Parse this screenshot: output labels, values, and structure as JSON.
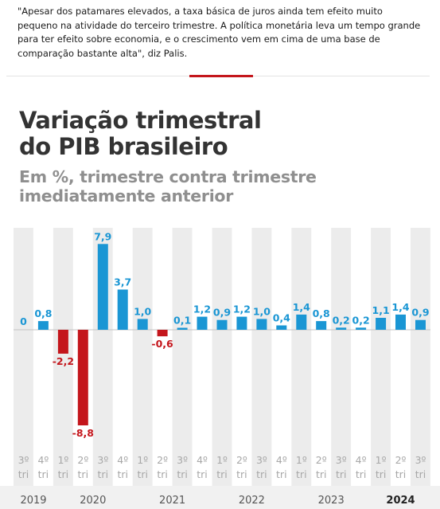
{
  "article": {
    "quote": "\"Apesar dos patamares elevados, a taxa básica de juros ainda tem efeito muito pequeno na atividade do terceiro trimestre. A política monetária leva um tempo grande para ter efeito sobre economia, e o crescimento vem em cima de uma base de comparação bastante alta\", diz Palis."
  },
  "colors": {
    "positive": "#1a96d4",
    "negative": "#c4161c",
    "positive_label": "#1a96d4",
    "negative_label": "#c4161c",
    "stripe": "#ececec",
    "axis": "#c4c4c4",
    "accent_line": "#c4161c"
  },
  "chart_data": {
    "type": "bar",
    "title_line1": "Variação trimestral",
    "title_line2": "do PIB brasileiro",
    "subtitle_line1": "Em %, trimestre contra trimestre",
    "subtitle_line2": "imediatamente anterior",
    "categories": [
      {
        "q": "3º",
        "t": "tri"
      },
      {
        "q": "4º",
        "t": "tri"
      },
      {
        "q": "1º",
        "t": "tri"
      },
      {
        "q": "2º",
        "t": "tri"
      },
      {
        "q": "3º",
        "t": "tri"
      },
      {
        "q": "4º",
        "t": "tri"
      },
      {
        "q": "1º",
        "t": "tri"
      },
      {
        "q": "2º",
        "t": "tri"
      },
      {
        "q": "3º",
        "t": "tri"
      },
      {
        "q": "4º",
        "t": "tri"
      },
      {
        "q": "1º",
        "t": "tri"
      },
      {
        "q": "2º",
        "t": "tri"
      },
      {
        "q": "3º",
        "t": "tri"
      },
      {
        "q": "4º",
        "t": "tri"
      },
      {
        "q": "1º",
        "t": "tri"
      },
      {
        "q": "2º",
        "t": "tri"
      },
      {
        "q": "3º",
        "t": "tri"
      },
      {
        "q": "4º",
        "t": "tri"
      },
      {
        "q": "1º",
        "t": "tri"
      },
      {
        "q": "2º",
        "t": "tri"
      },
      {
        "q": "3º",
        "t": "tri"
      }
    ],
    "values": [
      0,
      0.8,
      -2.2,
      -8.8,
      7.9,
      3.7,
      1.0,
      -0.6,
      0.1,
      1.2,
      0.9,
      1.2,
      1.0,
      0.4,
      1.4,
      0.8,
      0.2,
      0.2,
      1.1,
      1.4,
      0.9
    ],
    "labels": [
      "0",
      "0,8",
      "-2,2",
      "-8,8",
      "7,9",
      "3,7",
      "1,0",
      "-0,6",
      "0,1",
      "1,2",
      "0,9",
      "1,2",
      "1,0",
      "0,4",
      "1,4",
      "0,8",
      "0,2",
      "0,2",
      "1,1",
      "1,4",
      "0,9"
    ],
    "years": [
      {
        "label": "2019",
        "start": 0,
        "end": 1,
        "bold": false
      },
      {
        "label": "2020",
        "start": 2,
        "end": 5,
        "bold": false
      },
      {
        "label": "2021",
        "start": 6,
        "end": 9,
        "bold": false
      },
      {
        "label": "2022",
        "start": 10,
        "end": 13,
        "bold": false
      },
      {
        "label": "2023",
        "start": 14,
        "end": 17,
        "bold": false
      },
      {
        "label": "2024",
        "start": 18,
        "end": 20,
        "bold": true
      }
    ],
    "highlight_last_bar": true,
    "ylim": [
      -8.8,
      7.9
    ],
    "xlabel": "",
    "ylabel": ""
  }
}
